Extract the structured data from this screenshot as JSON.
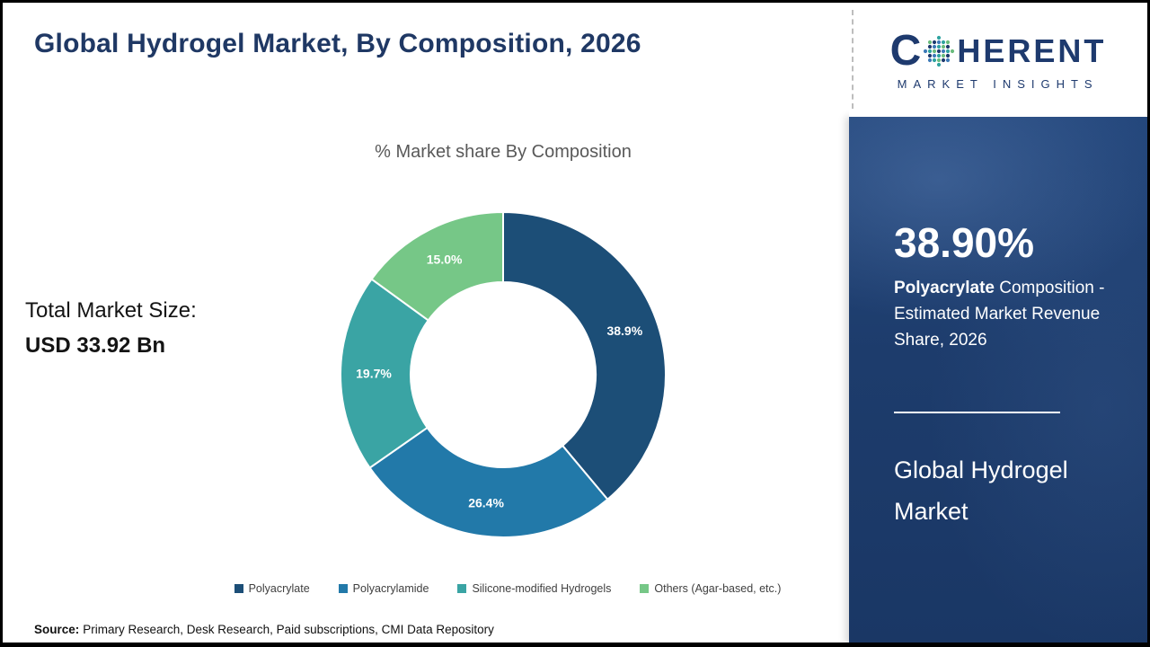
{
  "header": {
    "title": "Global Hydrogel Market, By Composition, 2026"
  },
  "logo": {
    "word_start": "C",
    "word_end": "HERENT",
    "subtitle": "MARKET INSIGHTS"
  },
  "left_panel": {
    "total_label": "Total Market Size:",
    "total_value": "USD 33.92 Bn"
  },
  "sidebar": {
    "stat_value": "38.90%",
    "stat_desc_bold": "Polyacrylate",
    "stat_desc_rest": " Composition - Estimated Market Revenue Share, 2026",
    "market_title": "Global Hydrogel Market"
  },
  "footer": {
    "source_label": "Source:",
    "source_text": "Primary Research, Desk Research, Paid subscriptions, CMI Data Repository"
  },
  "chart_data": {
    "type": "pie",
    "subtype": "donut",
    "title": "% Market share By Composition",
    "categories": [
      "Polyacrylate",
      "Polyacrylamide",
      "Silicone-modified Hydrogels",
      "Others (Agar-based, etc.)"
    ],
    "values": [
      38.9,
      26.4,
      19.7,
      15.0
    ],
    "data_labels": [
      "38.9%",
      "26.4%",
      "19.7%",
      "15.0%"
    ],
    "colors": [
      "#1c4e77",
      "#2279a9",
      "#3aa4a4",
      "#76c787"
    ],
    "start_angle_deg": 0,
    "direction": "clockwise",
    "inner_radius_ratio": 0.57,
    "legend_position": "bottom"
  }
}
